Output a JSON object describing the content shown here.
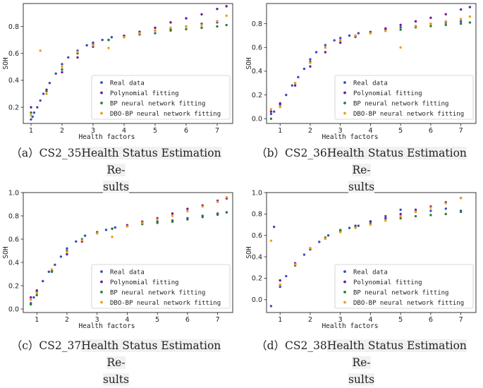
{
  "legend_labels": [
    "Real data",
    "Polynomial fitting",
    "BP neural network fitting",
    "DBO-BP neural network fitting"
  ],
  "series_colors": {
    "Real data": "#3b4cc0",
    "Polynomial fitting": "#6a1b9a",
    "BP neural network fitting": "#2e7d32",
    "DBO-BP neural network fitting": "#f39c12"
  },
  "chart_data": [
    {
      "type": "scatter",
      "xlabel": "Health factors",
      "ylabel": "SOH",
      "xticks": [
        1,
        2,
        3,
        4,
        5,
        6,
        7
      ],
      "yticks": [
        0.2,
        0.4,
        0.6,
        0.8
      ],
      "ylim": [
        0.08,
        0.97
      ],
      "xlim": [
        0.75,
        7.5
      ],
      "legend_position": "lower-right",
      "series": [
        {
          "name": "Real data",
          "x": [
            1.0,
            1.05,
            1.1,
            1.2,
            1.3,
            1.4,
            1.6,
            1.8,
            2.0,
            2.2,
            2.5,
            2.8,
            3.0,
            3.3,
            3.6,
            4.0,
            4.5,
            5.0,
            5.5,
            6.0,
            6.5,
            7.0
          ],
          "y": [
            0.11,
            0.13,
            0.16,
            0.2,
            0.25,
            0.3,
            0.38,
            0.45,
            0.52,
            0.57,
            0.62,
            0.66,
            0.68,
            0.7,
            0.72,
            0.73,
            0.75,
            0.77,
            0.78,
            0.8,
            0.82,
            0.83
          ]
        },
        {
          "name": "Polynomial fitting",
          "x": [
            1.0,
            1.5,
            2.0,
            2.5,
            3.0,
            3.5,
            4.0,
            4.5,
            5.0,
            5.5,
            6.0,
            6.5,
            7.0,
            7.3
          ],
          "y": [
            0.2,
            0.33,
            0.46,
            0.57,
            0.65,
            0.7,
            0.73,
            0.76,
            0.79,
            0.83,
            0.86,
            0.89,
            0.93,
            0.95
          ]
        },
        {
          "name": "BP neural network fitting",
          "x": [
            1.0,
            1.5,
            2.0,
            2.5,
            3.0,
            3.5,
            4.0,
            4.5,
            5.0,
            5.5,
            6.0,
            6.5,
            7.0,
            7.3
          ],
          "y": [
            0.16,
            0.32,
            0.48,
            0.6,
            0.67,
            0.7,
            0.72,
            0.74,
            0.75,
            0.77,
            0.78,
            0.79,
            0.8,
            0.81
          ]
        },
        {
          "name": "DBO-BP neural network fitting",
          "x": [
            1.0,
            1.3,
            1.5,
            2.0,
            2.5,
            3.0,
            3.5,
            4.0,
            4.5,
            5.0,
            5.5,
            6.0,
            6.5,
            7.0,
            7.3
          ],
          "y": [
            0.14,
            0.62,
            0.3,
            0.5,
            0.61,
            0.66,
            0.64,
            0.72,
            0.75,
            0.77,
            0.79,
            0.8,
            0.81,
            0.84,
            0.88
          ]
        }
      ]
    },
    {
      "type": "scatter",
      "xlabel": "Health factors",
      "ylabel": "SOH",
      "xticks": [
        1,
        2,
        3,
        4,
        5,
        6,
        7
      ],
      "yticks": [
        0.0,
        0.2,
        0.4,
        0.6,
        0.8
      ],
      "ylim": [
        -0.04,
        0.97
      ],
      "xlim": [
        0.55,
        7.5
      ],
      "legend_position": "lower-right",
      "series": [
        {
          "name": "Real data",
          "x": [
            0.7,
            0.8,
            1.0,
            1.2,
            1.4,
            1.6,
            1.8,
            2.0,
            2.2,
            2.5,
            2.8,
            3.0,
            3.3,
            3.6,
            4.0,
            4.5,
            5.0,
            5.5,
            6.0,
            6.5,
            7.0
          ],
          "y": [
            0.04,
            0.06,
            0.12,
            0.2,
            0.28,
            0.35,
            0.42,
            0.5,
            0.56,
            0.62,
            0.66,
            0.68,
            0.7,
            0.72,
            0.73,
            0.75,
            0.77,
            0.78,
            0.8,
            0.81,
            0.82
          ]
        },
        {
          "name": "Polynomial fitting",
          "x": [
            0.7,
            1.0,
            1.5,
            2.0,
            2.5,
            3.0,
            3.5,
            4.0,
            4.5,
            5.0,
            5.5,
            6.0,
            6.5,
            7.0,
            7.3
          ],
          "y": [
            0.06,
            0.13,
            0.28,
            0.44,
            0.56,
            0.64,
            0.69,
            0.73,
            0.76,
            0.79,
            0.82,
            0.85,
            0.88,
            0.92,
            0.94
          ]
        },
        {
          "name": "BP neural network fitting",
          "x": [
            0.7,
            1.0,
            1.5,
            2.0,
            2.5,
            3.0,
            3.5,
            4.0,
            4.5,
            5.0,
            5.5,
            6.0,
            6.5,
            7.0,
            7.3
          ],
          "y": [
            0.0,
            0.1,
            0.3,
            0.48,
            0.6,
            0.66,
            0.7,
            0.72,
            0.74,
            0.75,
            0.77,
            0.78,
            0.79,
            0.8,
            0.81
          ]
        },
        {
          "name": "DBO-BP neural network fitting",
          "x": [
            0.7,
            1.0,
            1.5,
            2.0,
            2.5,
            3.0,
            3.5,
            4.0,
            4.5,
            5.0,
            5.5,
            6.0,
            6.5,
            7.0,
            7.3
          ],
          "y": [
            0.08,
            0.1,
            0.3,
            0.47,
            0.6,
            0.66,
            0.7,
            0.72,
            0.74,
            0.6,
            0.78,
            0.8,
            0.82,
            0.84,
            0.86
          ]
        }
      ]
    },
    {
      "type": "scatter",
      "xlabel": "Health factors",
      "ylabel": "SOH",
      "xticks": [
        1,
        2,
        3,
        4,
        5,
        6,
        7
      ],
      "yticks": [
        0.0,
        0.2,
        0.4,
        0.6,
        0.8,
        1.0
      ],
      "ylim": [
        -0.03,
        1.0
      ],
      "xlim": [
        0.55,
        7.5
      ],
      "legend_position": "lower-right",
      "series": [
        {
          "name": "Real data",
          "x": [
            0.8,
            0.9,
            1.0,
            1.2,
            1.4,
            1.6,
            1.8,
            2.0,
            2.3,
            2.6,
            3.0,
            3.3,
            3.6,
            4.0,
            4.5,
            5.0,
            5.5,
            6.0,
            6.5,
            7.0,
            7.3
          ],
          "y": [
            0.05,
            0.1,
            0.15,
            0.24,
            0.32,
            0.38,
            0.45,
            0.52,
            0.58,
            0.63,
            0.66,
            0.68,
            0.7,
            0.71,
            0.73,
            0.75,
            0.76,
            0.78,
            0.8,
            0.82,
            0.83
          ]
        },
        {
          "name": "Polynomial fitting",
          "x": [
            0.8,
            1.0,
            1.5,
            2.0,
            2.5,
            3.0,
            3.5,
            4.0,
            4.5,
            5.0,
            5.5,
            6.0,
            6.5,
            7.0,
            7.3
          ],
          "y": [
            0.1,
            0.16,
            0.33,
            0.47,
            0.58,
            0.65,
            0.69,
            0.72,
            0.75,
            0.78,
            0.82,
            0.86,
            0.89,
            0.93,
            0.95
          ]
        },
        {
          "name": "BP neural network fitting",
          "x": [
            0.8,
            1.0,
            1.5,
            2.0,
            2.5,
            3.0,
            3.5,
            4.0,
            4.5,
            5.0,
            5.5,
            6.0,
            6.5,
            7.0,
            7.3
          ],
          "y": [
            0.04,
            0.12,
            0.32,
            0.5,
            0.6,
            0.66,
            0.69,
            0.71,
            0.73,
            0.74,
            0.75,
            0.77,
            0.79,
            0.81,
            0.83
          ]
        },
        {
          "name": "DBO-BP neural network fitting",
          "x": [
            0.8,
            1.0,
            1.5,
            2.0,
            2.5,
            3.0,
            3.5,
            4.0,
            4.5,
            5.0,
            5.5,
            6.0,
            6.5,
            7.0,
            7.3
          ],
          "y": [
            0.08,
            0.14,
            0.34,
            0.49,
            0.59,
            0.65,
            0.62,
            0.71,
            0.74,
            0.77,
            0.8,
            0.84,
            0.88,
            0.92,
            0.96
          ]
        }
      ]
    },
    {
      "type": "scatter",
      "xlabel": "Health factors",
      "ylabel": "SOH",
      "xticks": [
        1,
        2,
        3,
        4,
        5,
        6,
        7
      ],
      "yticks": [
        0.0,
        0.2,
        0.4,
        0.6,
        0.8,
        1.0
      ],
      "ylim": [
        -0.12,
        1.0
      ],
      "xlim": [
        0.55,
        7.5
      ],
      "legend_position": "lower-right",
      "series": [
        {
          "name": "Real data",
          "x": [
            0.7,
            0.8,
            1.0,
            1.2,
            1.5,
            1.8,
            2.0,
            2.3,
            2.6,
            3.0,
            3.3,
            3.6,
            4.0,
            4.5,
            5.0,
            5.5,
            6.0,
            6.5,
            7.0
          ],
          "y": [
            -0.06,
            0.68,
            0.12,
            0.22,
            0.33,
            0.42,
            0.48,
            0.54,
            0.6,
            0.64,
            0.67,
            0.69,
            0.73,
            0.78,
            0.84,
            0.82,
            0.83,
            0.85,
            0.83
          ]
        },
        {
          "name": "Polynomial fitting",
          "x": [
            1.0,
            1.5,
            2.0,
            2.5,
            3.0,
            3.5,
            4.0,
            4.5,
            5.0,
            5.5,
            6.0,
            6.5,
            7.0
          ],
          "y": [
            0.18,
            0.34,
            0.47,
            0.57,
            0.64,
            0.69,
            0.73,
            0.76,
            0.8,
            0.84,
            0.87,
            0.91,
            0.95
          ]
        },
        {
          "name": "BP neural network fitting",
          "x": [
            1.0,
            1.5,
            2.0,
            2.5,
            3.0,
            3.5,
            4.0,
            4.5,
            5.0,
            5.5,
            6.0,
            6.5,
            7.0
          ],
          "y": [
            0.14,
            0.32,
            0.48,
            0.58,
            0.65,
            0.68,
            0.71,
            0.74,
            0.76,
            0.78,
            0.79,
            0.8,
            0.82
          ]
        },
        {
          "name": "DBO-BP neural network fitting",
          "x": [
            0.7,
            1.0,
            1.5,
            2.0,
            2.5,
            3.0,
            3.5,
            4.0,
            4.5,
            5.0,
            5.5,
            6.0,
            6.5,
            7.0
          ],
          "y": [
            0.55,
            0.14,
            0.33,
            0.48,
            0.57,
            0.63,
            0.67,
            0.7,
            0.74,
            0.78,
            0.82,
            0.86,
            0.9,
            0.95
          ]
        }
      ]
    }
  ],
  "captions": [
    {
      "prefix": "（a）CS2_35",
      "highlight": "Health Status Estimation Re-",
      "line2": "sults"
    },
    {
      "prefix": "（b）CS2_36",
      "highlight": "Health Status Estimation Re-",
      "line2": "sults"
    },
    {
      "prefix": "（c）CS2_37",
      "highlight": "Health Status Estimation Re-",
      "line2": "sults"
    },
    {
      "prefix": "（d）CS2_38",
      "highlight": "Health Status Estimation Re-",
      "line2": "sults"
    }
  ]
}
